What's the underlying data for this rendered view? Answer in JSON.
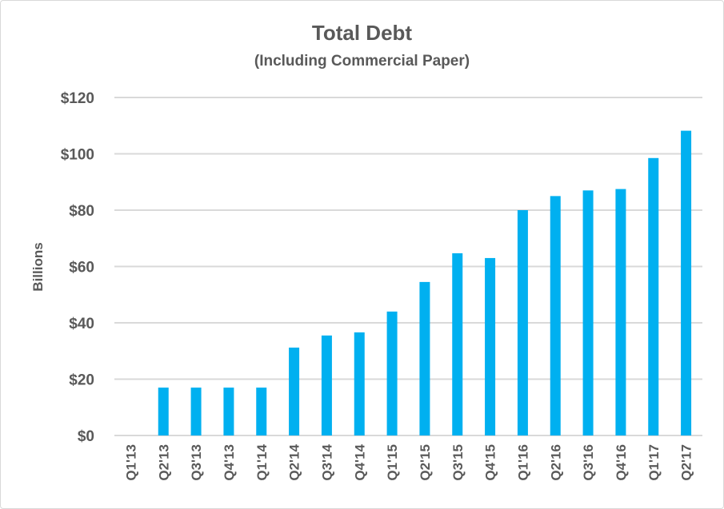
{
  "chart_data": {
    "type": "bar",
    "title": "Total Debt",
    "subtitle": "(Including Commercial Paper)",
    "xlabel": "",
    "ylabel": "Billions",
    "ylim": [
      0,
      120
    ],
    "yticks": [
      0,
      20,
      40,
      60,
      80,
      100,
      120
    ],
    "ytick_labels": [
      "$0",
      "$20",
      "$40",
      "$60",
      "$80",
      "$100",
      "$120"
    ],
    "grid": true,
    "legend": "none",
    "bar_color": "#00B0F0",
    "categories": [
      "Q1'13",
      "Q2'13",
      "Q3'13",
      "Q4'13",
      "Q1'14",
      "Q2'14",
      "Q3'14",
      "Q4'14",
      "Q1'15",
      "Q2'15",
      "Q3'15",
      "Q4'15",
      "Q1'16",
      "Q2'16",
      "Q3'16",
      "Q4'16",
      "Q1'17",
      "Q2'17"
    ],
    "values": [
      0,
      17,
      17,
      17,
      17,
      31.2,
      35.5,
      36.6,
      44,
      54.5,
      64.7,
      63,
      80,
      85,
      87,
      87.5,
      98.5,
      108.2
    ]
  }
}
